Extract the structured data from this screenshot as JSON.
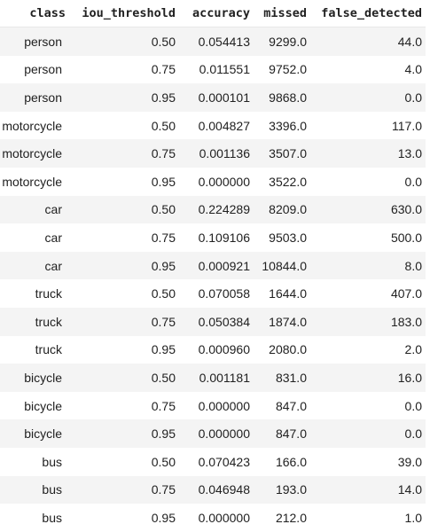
{
  "table": {
    "columns": [
      "class",
      "iou_threshold",
      "accuracy",
      "missed",
      "false_detected"
    ],
    "rows": [
      [
        "person",
        "0.50",
        "0.054413",
        "9299.0",
        "44.0"
      ],
      [
        "person",
        "0.75",
        "0.011551",
        "9752.0",
        "4.0"
      ],
      [
        "person",
        "0.95",
        "0.000101",
        "9868.0",
        "0.0"
      ],
      [
        "motorcycle",
        "0.50",
        "0.004827",
        "3396.0",
        "117.0"
      ],
      [
        "motorcycle",
        "0.75",
        "0.001136",
        "3507.0",
        "13.0"
      ],
      [
        "motorcycle",
        "0.95",
        "0.000000",
        "3522.0",
        "0.0"
      ],
      [
        "car",
        "0.50",
        "0.224289",
        "8209.0",
        "630.0"
      ],
      [
        "car",
        "0.75",
        "0.109106",
        "9503.0",
        "500.0"
      ],
      [
        "car",
        "0.95",
        "0.000921",
        "10844.0",
        "8.0"
      ],
      [
        "truck",
        "0.50",
        "0.070058",
        "1644.0",
        "407.0"
      ],
      [
        "truck",
        "0.75",
        "0.050384",
        "1874.0",
        "183.0"
      ],
      [
        "truck",
        "0.95",
        "0.000960",
        "2080.0",
        "2.0"
      ],
      [
        "bicycle",
        "0.50",
        "0.001181",
        "831.0",
        "16.0"
      ],
      [
        "bicycle",
        "0.75",
        "0.000000",
        "847.0",
        "0.0"
      ],
      [
        "bicycle",
        "0.95",
        "0.000000",
        "847.0",
        "0.0"
      ],
      [
        "bus",
        "0.50",
        "0.070423",
        "166.0",
        "39.0"
      ],
      [
        "bus",
        "0.75",
        "0.046948",
        "193.0",
        "14.0"
      ],
      [
        "bus",
        "0.95",
        "0.000000",
        "212.0",
        "1.0"
      ]
    ]
  }
}
